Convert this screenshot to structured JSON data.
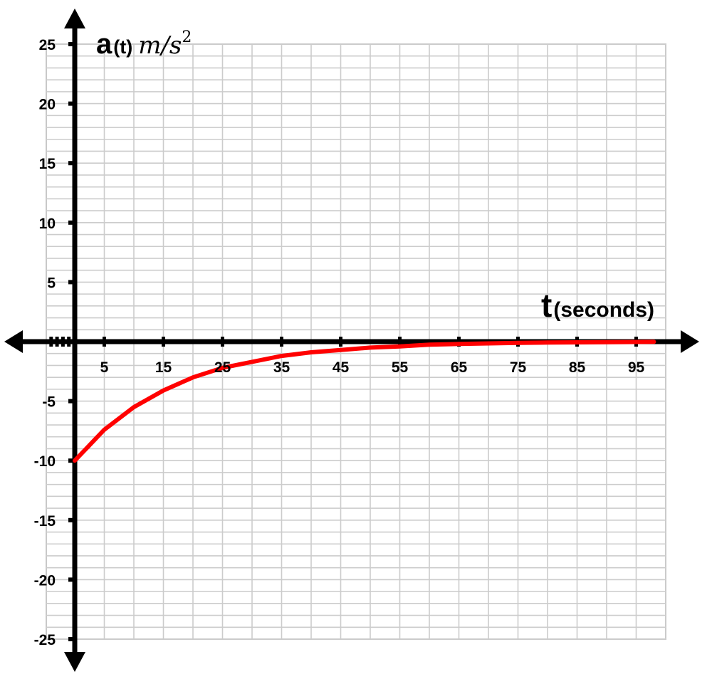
{
  "chart_data": {
    "type": "line",
    "xlabel_main": "t",
    "xlabel_sub": "(seconds)",
    "ylabel_main": "a",
    "ylabel_paren": "(t)",
    "ylabel_unit": "m/s",
    "ylabel_unit_exp": "2",
    "xlim": [
      0,
      100
    ],
    "ylim": [
      -25,
      25
    ],
    "x_ticks": [
      "5",
      "15",
      "25",
      "35",
      "45",
      "55",
      "65",
      "75",
      "85",
      "95"
    ],
    "y_ticks": [
      "25",
      "20",
      "15",
      "10",
      "5",
      "-5",
      "-10",
      "-15",
      "-20",
      "-25"
    ],
    "grid": true,
    "series": [
      {
        "color": "#ff0000",
        "x": [
          0,
          5,
          10,
          15,
          20,
          25,
          30,
          35,
          40,
          45,
          50,
          55,
          60,
          65,
          70,
          75,
          80,
          85,
          90,
          95,
          98
        ],
        "y": [
          -10,
          -7.4,
          -5.5,
          -4.1,
          -3.0,
          -2.2,
          -1.7,
          -1.2,
          -0.9,
          -0.7,
          -0.5,
          -0.4,
          -0.25,
          -0.2,
          -0.15,
          -0.1,
          -0.08,
          -0.06,
          -0.04,
          -0.03,
          -0.02
        ]
      }
    ]
  }
}
